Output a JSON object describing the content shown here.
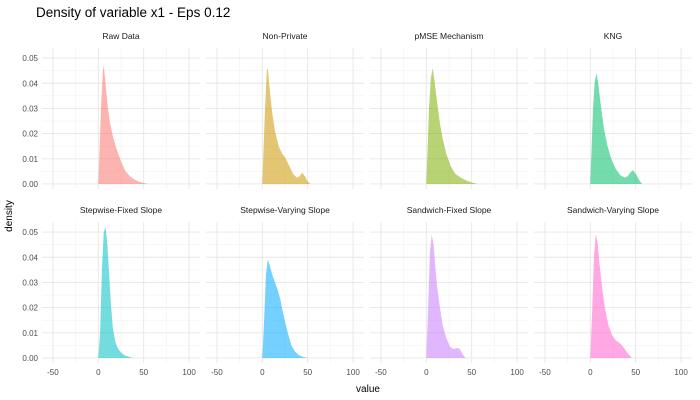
{
  "chart_data": {
    "type": "area",
    "title": "Density of variable x1 - Eps 0.12",
    "xlabel": "value",
    "ylabel": "density",
    "xlim": [
      -62,
      112
    ],
    "ylim": [
      -0.002,
      0.054
    ],
    "x_ticks": [
      -50,
      0,
      50,
      100
    ],
    "x_tick_labels": [
      "-50",
      "0",
      "50",
      "100"
    ],
    "y_ticks": [
      0.0,
      0.01,
      0.02,
      0.03,
      0.04,
      0.05
    ],
    "y_tick_labels": [
      "0.00",
      "0.01",
      "0.02",
      "0.03",
      "0.04",
      "0.05"
    ],
    "grid": true,
    "layout": {
      "rows": 2,
      "cols": 4
    },
    "panels": [
      {
        "name": "Raw Data",
        "color": "#F8766D",
        "x": [
          0,
          3,
          5,
          6,
          8,
          10,
          13,
          16,
          20,
          25,
          30,
          35,
          40,
          45,
          50,
          55
        ],
        "y": [
          0,
          0.03,
          0.045,
          0.047,
          0.04,
          0.032,
          0.024,
          0.019,
          0.014,
          0.009,
          0.005,
          0.003,
          0.0017,
          0.0009,
          0.0004,
          0
        ]
      },
      {
        "name": "Non-Private",
        "color": "#CD9600",
        "x": [
          0,
          3,
          5,
          6,
          8,
          11,
          14,
          18,
          22,
          26,
          30,
          34,
          38,
          41,
          44,
          47,
          50,
          53
        ],
        "y": [
          0,
          0.03,
          0.045,
          0.046,
          0.038,
          0.028,
          0.021,
          0.015,
          0.012,
          0.01,
          0.007,
          0.004,
          0.0025,
          0.003,
          0.0045,
          0.003,
          0.001,
          0
        ]
      },
      {
        "name": "pMSE Mechanism",
        "color": "#7CAE00",
        "x": [
          0,
          3,
          5,
          7,
          9,
          12,
          15,
          18,
          22,
          27,
          32,
          38,
          44,
          50,
          56
        ],
        "y": [
          0,
          0.03,
          0.042,
          0.046,
          0.041,
          0.032,
          0.024,
          0.018,
          0.012,
          0.007,
          0.004,
          0.0025,
          0.0014,
          0.0006,
          0
        ]
      },
      {
        "name": "KNG",
        "color": "#00BE67",
        "x": [
          0,
          3,
          5,
          7,
          9,
          12,
          15,
          19,
          23,
          28,
          33,
          38,
          41,
          44,
          47,
          50,
          54,
          57
        ],
        "y": [
          0,
          0.03,
          0.041,
          0.044,
          0.039,
          0.03,
          0.022,
          0.015,
          0.01,
          0.006,
          0.0035,
          0.0025,
          0.003,
          0.0045,
          0.0055,
          0.004,
          0.0015,
          0
        ]
      },
      {
        "name": "Stepwise-Fixed Slope",
        "color": "#00BFC4",
        "x": [
          0,
          2,
          4,
          6,
          8,
          10,
          12,
          14,
          16,
          19,
          22,
          26,
          30,
          35,
          40
        ],
        "y": [
          0,
          0.01,
          0.035,
          0.05,
          0.052,
          0.045,
          0.033,
          0.021,
          0.012,
          0.006,
          0.0035,
          0.0018,
          0.0009,
          0.0003,
          0
        ]
      },
      {
        "name": "Stepwise-Varying Slope",
        "color": "#00A9FF",
        "x": [
          0,
          2,
          4,
          6,
          8,
          11,
          14,
          17,
          20,
          24,
          28,
          32,
          36,
          40,
          45,
          50
        ],
        "y": [
          0,
          0.015,
          0.033,
          0.039,
          0.037,
          0.033,
          0.03,
          0.027,
          0.023,
          0.016,
          0.01,
          0.005,
          0.0025,
          0.0012,
          0.0004,
          0
        ]
      },
      {
        "name": "Sandwich-Fixed Slope",
        "color": "#C77CFF",
        "x": [
          0,
          2,
          4,
          6,
          8,
          10,
          12,
          15,
          18,
          22,
          26,
          30,
          34,
          37,
          40,
          43
        ],
        "y": [
          0,
          0.02,
          0.042,
          0.049,
          0.045,
          0.036,
          0.028,
          0.02,
          0.013,
          0.008,
          0.0045,
          0.0035,
          0.004,
          0.0035,
          0.0015,
          0
        ]
      },
      {
        "name": "Sandwich-Varying Slope",
        "color": "#FF61CC",
        "x": [
          0,
          2,
          4,
          6,
          8,
          10,
          13,
          16,
          20,
          24,
          28,
          32,
          35,
          38,
          42,
          46
        ],
        "y": [
          0,
          0.018,
          0.04,
          0.049,
          0.046,
          0.038,
          0.028,
          0.02,
          0.013,
          0.009,
          0.007,
          0.006,
          0.005,
          0.0035,
          0.0015,
          0
        ]
      }
    ]
  }
}
